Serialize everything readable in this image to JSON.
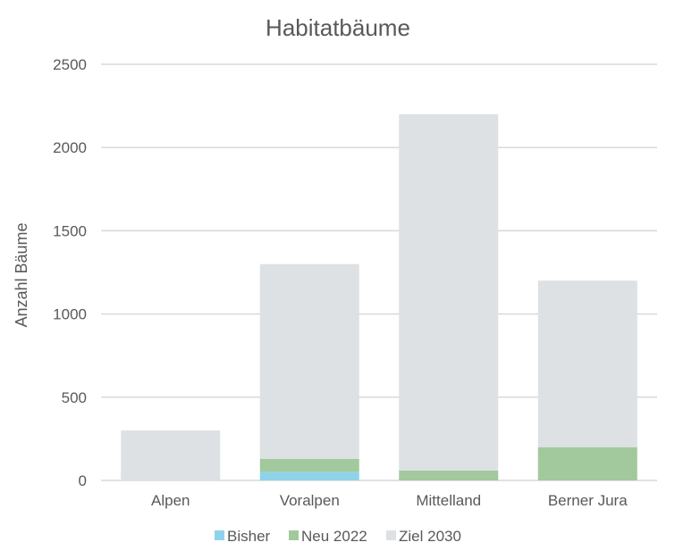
{
  "chart_data": {
    "type": "bar",
    "stacked": true,
    "title": "Habitatbäume",
    "xlabel": "",
    "ylabel": "Anzahl Bäume",
    "categories": [
      "Alpen",
      "Voralpen",
      "Mittelland",
      "Berner Jura"
    ],
    "series": [
      {
        "name": "Bisher",
        "values": [
          0,
          50,
          0,
          0
        ],
        "color": "#8ED3EA"
      },
      {
        "name": "Neu 2022",
        "values": [
          0,
          80,
          60,
          200
        ],
        "color": "#A2C99D"
      },
      {
        "name": "Ziel 2030",
        "values": [
          300,
          1170,
          2140,
          1000
        ],
        "color": "#DEE1E4"
      }
    ],
    "ylim": [
      0,
      2500
    ],
    "yticks": [
      0,
      500,
      1000,
      1500,
      2000,
      2500
    ],
    "grid": true,
    "legend_position": "bottom",
    "colors": {
      "gridline": "#D9D9D9",
      "text": "#595959"
    }
  }
}
